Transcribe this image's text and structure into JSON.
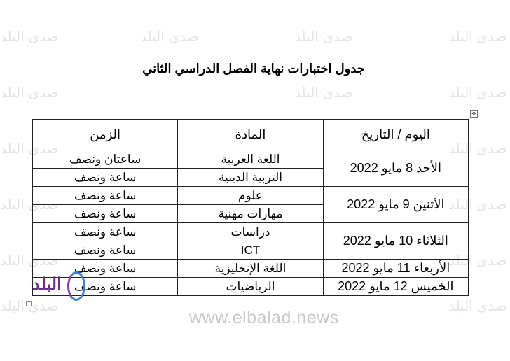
{
  "watermark": "صدى البلد",
  "website": "www.elbalad.news",
  "logo_text": "البلد",
  "title": "جدول اختبارات نهاية الفصل الدراسي الثاني",
  "table": {
    "headers": [
      "اليوم / التاريخ",
      "المادة",
      "الزمن"
    ],
    "days": [
      {
        "date": "الأحد 8 مايو 2022",
        "rows": [
          {
            "subject": "اللغة العربية",
            "duration": "ساعتان ونصف"
          },
          {
            "subject": "التربية الدينية",
            "duration": "ساعة ونصف"
          }
        ]
      },
      {
        "date": "الأثنين 9 مايو 2022",
        "rows": [
          {
            "subject": "علوم",
            "duration": "ساعة ونصف"
          },
          {
            "subject": "مهارات مهنية",
            "duration": "ساعة ونصف"
          }
        ]
      },
      {
        "date": "الثلاثاء 10 مايو 2022",
        "rows": [
          {
            "subject": "دراسات",
            "duration": "ساعة ونصف"
          },
          {
            "subject": "ICT",
            "duration": "ساعة ونصف"
          }
        ]
      },
      {
        "date": "الأربعاء 11 مايو 2022",
        "rows": [
          {
            "subject": "اللغة الإنجليزية",
            "duration": "ساعة ونصف"
          }
        ]
      },
      {
        "date": "الخميس 12 مايو 2022",
        "rows": [
          {
            "subject": "الرياضيات",
            "duration": "ساعة ونصف"
          }
        ]
      }
    ]
  }
}
